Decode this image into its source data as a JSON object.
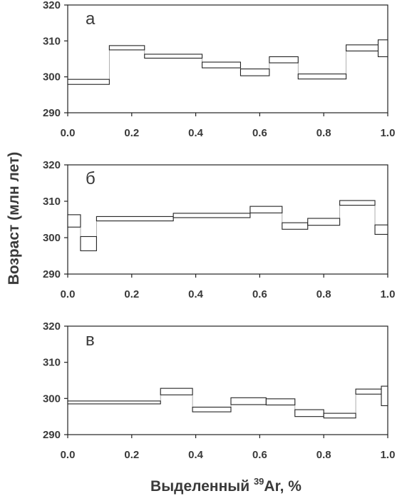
{
  "figure": {
    "ylabel": "Возраст (млн лет)",
    "xlabel_prefix": "Выделенный ",
    "xlabel_superscript": "39",
    "xlabel_suffix": "Ar, %"
  },
  "chart_data": [
    {
      "type": "age-spectrum",
      "panel_label": "а",
      "xlim": [
        0.0,
        1.0
      ],
      "ylim": [
        290,
        320
      ],
      "x_ticks": [
        "0.0",
        "0.2",
        "0.4",
        "0.6",
        "0.8",
        "1.0"
      ],
      "y_ticks": [
        "290",
        "300",
        "310",
        "320"
      ],
      "steps": [
        {
          "x0": 0.0,
          "x1": 0.13,
          "age_min": 297.9,
          "age_max": 299.3
        },
        {
          "x0": 0.13,
          "x1": 0.24,
          "age_min": 307.5,
          "age_max": 308.7
        },
        {
          "x0": 0.24,
          "x1": 0.42,
          "age_min": 305.2,
          "age_max": 306.3
        },
        {
          "x0": 0.42,
          "x1": 0.54,
          "age_min": 302.5,
          "age_max": 304.1
        },
        {
          "x0": 0.54,
          "x1": 0.63,
          "age_min": 300.3,
          "age_max": 302.2
        },
        {
          "x0": 0.63,
          "x1": 0.72,
          "age_min": 303.9,
          "age_max": 305.6
        },
        {
          "x0": 0.72,
          "x1": 0.87,
          "age_min": 299.4,
          "age_max": 300.8
        },
        {
          "x0": 0.87,
          "x1": 0.97,
          "age_min": 307.2,
          "age_max": 308.9
        },
        {
          "x0": 0.97,
          "x1": 1.0,
          "age_min": 305.6,
          "age_max": 310.3
        }
      ]
    },
    {
      "type": "age-spectrum",
      "panel_label": "б",
      "xlim": [
        0.0,
        1.0
      ],
      "ylim": [
        290,
        320
      ],
      "x_ticks": [
        "0.0",
        "0.2",
        "0.4",
        "0.6",
        "0.8",
        "1.0"
      ],
      "y_ticks": [
        "290",
        "300",
        "310",
        "320"
      ],
      "steps": [
        {
          "x0": 0.0,
          "x1": 0.04,
          "age_min": 302.9,
          "age_max": 306.3
        },
        {
          "x0": 0.04,
          "x1": 0.09,
          "age_min": 296.4,
          "age_max": 300.3
        },
        {
          "x0": 0.09,
          "x1": 0.33,
          "age_min": 304.6,
          "age_max": 305.8
        },
        {
          "x0": 0.33,
          "x1": 0.57,
          "age_min": 305.5,
          "age_max": 306.7
        },
        {
          "x0": 0.57,
          "x1": 0.67,
          "age_min": 306.8,
          "age_max": 308.6
        },
        {
          "x0": 0.67,
          "x1": 0.75,
          "age_min": 302.3,
          "age_max": 304.1
        },
        {
          "x0": 0.75,
          "x1": 0.85,
          "age_min": 303.4,
          "age_max": 305.3
        },
        {
          "x0": 0.85,
          "x1": 0.96,
          "age_min": 308.9,
          "age_max": 310.2
        },
        {
          "x0": 0.96,
          "x1": 1.0,
          "age_min": 300.9,
          "age_max": 303.5
        }
      ]
    },
    {
      "type": "age-spectrum",
      "panel_label": "в",
      "xlim": [
        0.0,
        1.0
      ],
      "ylim": [
        290,
        320
      ],
      "x_ticks": [
        "0.0",
        "0.2",
        "0.4",
        "0.6",
        "0.8",
        "1.0"
      ],
      "y_ticks": [
        "290",
        "300",
        "310",
        "320"
      ],
      "steps": [
        {
          "x0": 0.0,
          "x1": 0.29,
          "age_min": 298.5,
          "age_max": 299.3
        },
        {
          "x0": 0.29,
          "x1": 0.39,
          "age_min": 301.0,
          "age_max": 302.8
        },
        {
          "x0": 0.39,
          "x1": 0.51,
          "age_min": 296.3,
          "age_max": 297.6
        },
        {
          "x0": 0.51,
          "x1": 0.62,
          "age_min": 298.3,
          "age_max": 300.2
        },
        {
          "x0": 0.62,
          "x1": 0.71,
          "age_min": 298.2,
          "age_max": 299.9
        },
        {
          "x0": 0.71,
          "x1": 0.8,
          "age_min": 295.0,
          "age_max": 296.9
        },
        {
          "x0": 0.8,
          "x1": 0.9,
          "age_min": 294.6,
          "age_max": 295.9
        },
        {
          "x0": 0.9,
          "x1": 0.98,
          "age_min": 301.2,
          "age_max": 302.6
        },
        {
          "x0": 0.98,
          "x1": 1.0,
          "age_min": 298.0,
          "age_max": 303.4
        }
      ]
    }
  ]
}
